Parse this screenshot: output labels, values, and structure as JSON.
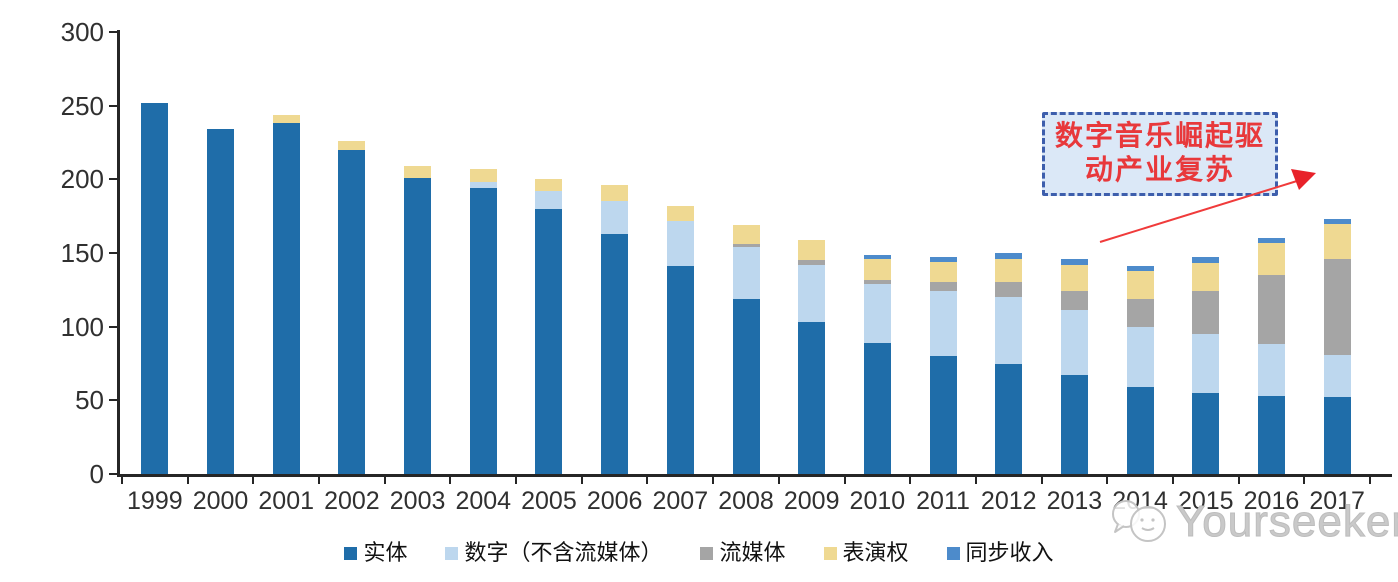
{
  "chart_data": {
    "type": "bar",
    "stacked": true,
    "title": "",
    "xlabel": "",
    "ylabel": "",
    "categories": [
      "1999",
      "2000",
      "2001",
      "2002",
      "2003",
      "2004",
      "2005",
      "2006",
      "2007",
      "2008",
      "2009",
      "2010",
      "2011",
      "2012",
      "2013",
      "2014",
      "2015",
      "2016",
      "2017"
    ],
    "series": [
      {
        "name": "实体",
        "color": "#1F6DA9",
        "values": [
          252,
          234,
          238,
          220,
          201,
          194,
          180,
          163,
          141,
          119,
          103,
          89,
          80,
          75,
          67,
          59,
          55,
          53,
          52
        ]
      },
      {
        "name": "数字（不含流媒体）",
        "color": "#BDD7EE",
        "values": [
          0,
          0,
          0,
          0,
          0,
          4,
          12,
          22,
          31,
          35,
          39,
          40,
          44,
          45,
          44,
          41,
          40,
          35,
          29
        ]
      },
      {
        "name": "流媒体",
        "color": "#A5A5A5",
        "values": [
          0,
          0,
          0,
          0,
          0,
          0,
          0,
          0,
          0,
          2,
          3,
          3,
          6,
          10,
          13,
          19,
          29,
          47,
          65
        ]
      },
      {
        "name": "表演权",
        "color": "#EFD992",
        "values": [
          0,
          0,
          6,
          6,
          8,
          9,
          8,
          11,
          10,
          13,
          14,
          14,
          14,
          16,
          18,
          19,
          19,
          22,
          24
        ]
      },
      {
        "name": "同步收入",
        "color": "#4D8BCB",
        "values": [
          0,
          0,
          0,
          0,
          0,
          0,
          0,
          0,
          0,
          0,
          0,
          3,
          3,
          4,
          4,
          3,
          4,
          3,
          3
        ]
      }
    ],
    "ylim": [
      0,
      300
    ],
    "yticks": [
      0,
      50,
      100,
      150,
      200,
      250,
      300
    ],
    "grid": false,
    "legend_position": "bottom",
    "axis_color": "#262626",
    "tick_label_color": "#303030"
  },
  "annotation": {
    "line1": "数字音乐崛起驱",
    "line2": "动产业复苏",
    "text_color": "#E8383B",
    "border_color": "#3D5EAC",
    "fill_color": "#DBE8F7",
    "arrow_color": "#F03B3B"
  },
  "watermark": {
    "text": "Yourseeker",
    "color": "#c9c9c9",
    "logo_icon": "speech-bubble-face-icon"
  }
}
